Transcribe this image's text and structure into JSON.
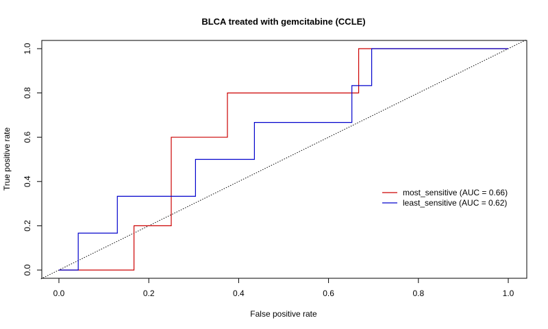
{
  "chart_data": {
    "type": "line",
    "title": "BLCA treated with gemcitabine (CCLE)",
    "xlabel": "False positive rate",
    "ylabel": "True positive rate",
    "xlim": [
      0,
      1
    ],
    "ylim": [
      0,
      1
    ],
    "x_ticks": [
      "0.0",
      "0.2",
      "0.4",
      "0.6",
      "0.8",
      "1.0"
    ],
    "y_ticks": [
      "0.0",
      "0.2",
      "0.4",
      "0.6",
      "0.8",
      "1.0"
    ],
    "grid": false,
    "legend_position": "right",
    "series": [
      {
        "name": "most_sensitive (AUC = 0.66)",
        "color": "#cc0000",
        "step": true,
        "points": [
          [
            0,
            0
          ],
          [
            0.167,
            0
          ],
          [
            0.167,
            0.2
          ],
          [
            0.25,
            0.2
          ],
          [
            0.25,
            0.6
          ],
          [
            0.375,
            0.6
          ],
          [
            0.375,
            0.8
          ],
          [
            0.667,
            0.8
          ],
          [
            0.667,
            1.0
          ],
          [
            1.0,
            1.0
          ]
        ]
      },
      {
        "name": "least_sensitive (AUC = 0.62)",
        "color": "#0000cc",
        "step": true,
        "points": [
          [
            0,
            0
          ],
          [
            0.043,
            0
          ],
          [
            0.043,
            0.167
          ],
          [
            0.13,
            0.167
          ],
          [
            0.13,
            0.333
          ],
          [
            0.304,
            0.333
          ],
          [
            0.304,
            0.5
          ],
          [
            0.435,
            0.5
          ],
          [
            0.435,
            0.667
          ],
          [
            0.652,
            0.667
          ],
          [
            0.652,
            0.833
          ],
          [
            0.696,
            0.833
          ],
          [
            0.696,
            1.0
          ],
          [
            1.0,
            1.0
          ]
        ]
      }
    ],
    "reference_line": {
      "style": "dotted",
      "color": "#000000",
      "points": [
        [
          0,
          0
        ],
        [
          1,
          1
        ]
      ]
    }
  }
}
